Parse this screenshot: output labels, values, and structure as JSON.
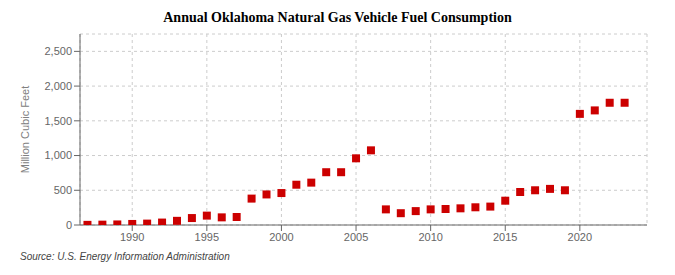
{
  "chart_data": {
    "type": "scatter",
    "title": "Annual Oklahoma Natural Gas Vehicle Fuel Consumption",
    "ylabel": "Million Cubic Feet",
    "annotations": [
      "Source: U.S. Energy Information Administration"
    ],
    "x": [
      1987,
      1988,
      1989,
      1990,
      1991,
      1992,
      1993,
      1994,
      1995,
      1996,
      1997,
      1998,
      1999,
      2000,
      2001,
      2002,
      2003,
      2004,
      2005,
      2006,
      2007,
      2008,
      2009,
      2010,
      2011,
      2012,
      2013,
      2014,
      2015,
      2016,
      2017,
      2018,
      2019,
      2020,
      2021,
      2022,
      2023
    ],
    "values": [
      2,
      5,
      8,
      15,
      20,
      35,
      60,
      100,
      135,
      110,
      115,
      380,
      440,
      460,
      580,
      610,
      760,
      760,
      960,
      1075,
      225,
      170,
      200,
      225,
      230,
      240,
      255,
      265,
      350,
      475,
      500,
      520,
      500,
      1600,
      1650,
      1760,
      1760
    ],
    "color": "#cc0000",
    "marker": "square",
    "xlim": [
      1986.5,
      2024.5
    ],
    "ylim": [
      0,
      2750
    ],
    "xticks": [
      1990,
      1995,
      2000,
      2005,
      2010,
      2015,
      2020
    ],
    "yticks": [
      0,
      500,
      {
        "value": 1000,
        "label": "1,000"
      },
      {
        "value": 1500,
        "label": "1,500"
      },
      {
        "value": 2000,
        "label": "2,000"
      },
      {
        "value": 2500,
        "label": "2,500"
      }
    ],
    "grid": true
  }
}
